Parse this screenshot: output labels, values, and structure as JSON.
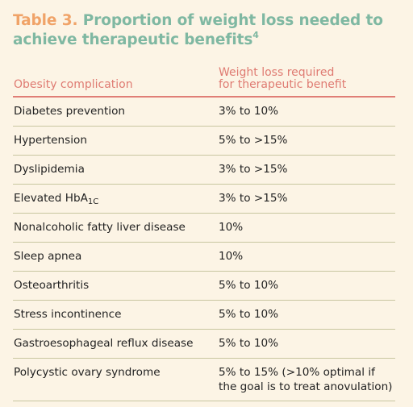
{
  "title": {
    "label": "Table 3.",
    "text": "Proportion of weight loss needed to achieve therapeutic benefits",
    "superscript": "4"
  },
  "columns": {
    "left": "Obesity complication",
    "right_line1": "Weight loss required",
    "right_line2": "for therapeutic benefit"
  },
  "rows": [
    {
      "complication": "Diabetes prevention",
      "weight_loss": "3% to 10%"
    },
    {
      "complication": "Hypertension",
      "weight_loss": "5% to >15%"
    },
    {
      "complication": "Dyslipidemia",
      "weight_loss": "3% to >15%"
    },
    {
      "complication": "Elevated HbA",
      "complication_sub": "1C",
      "weight_loss": "3% to >15%"
    },
    {
      "complication": "Nonalcoholic fatty liver disease",
      "weight_loss": "10%"
    },
    {
      "complication": "Sleep apnea",
      "weight_loss": "10%"
    },
    {
      "complication": "Osteoarthritis",
      "weight_loss": "5% to 10%"
    },
    {
      "complication": "Stress incontinence",
      "weight_loss": "5% to 10%"
    },
    {
      "complication": "Gastroesophageal reflux disease",
      "weight_loss": "5% to 10%"
    },
    {
      "complication": "Polycystic ovary syndrome",
      "weight_loss": "5% to 15% (>10% optimal if the goal is to treat anovulation)"
    }
  ],
  "colors": {
    "background": "#fcf4e5",
    "table_label": "#f0a368",
    "title_text": "#7fb8a2",
    "header_text": "#df7b72",
    "header_rule": "#e07e76",
    "row_rule": "#c8c6a0"
  }
}
